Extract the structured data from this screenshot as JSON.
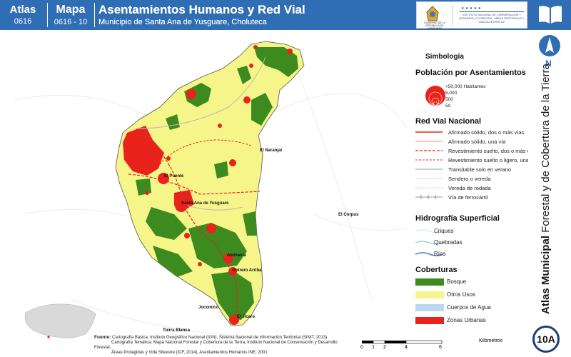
{
  "header": {
    "atlas_label": "Atlas",
    "atlas_code": "0616",
    "map_label": "Mapa",
    "map_code": "0616 - 10",
    "title": "Asentamientos Humanos y Red Vial",
    "subtitle": "Municipio de Santa Ana de Yusguare, Choluteca"
  },
  "logos": {
    "left_text": "GOBIERNO DE LA REPÚBLICA DE HONDURAS",
    "right_text": "INSTITUTO NACIONAL DE CONSERVACIÓN Y DESARROLLO FORESTAL, ÁREAS PROTEGIDAS Y VIDA SILVESTRE ICF"
  },
  "sidebar": {
    "north": "N",
    "vertical_bold": "Atlas Municipal",
    "vertical_rest": "Forestal y de Cobertura de la Tierra",
    "badge": "10A"
  },
  "legend": {
    "title": "Simbología",
    "poblacion": {
      "heading": "Población por Asentamientos",
      "sizes": [
        "+50,000 Habitantes",
        "5,000",
        "500",
        "50"
      ]
    },
    "red_vial": {
      "heading": "Red Vial Nacional",
      "items": [
        "Afirmado sólido, dos o más vías",
        "Afirmado sólido, una vía",
        "Revestimiento suelto, dos o más vías",
        "Revestimiento suelto o ligero, una vía",
        "Transitable solo en verano",
        "Sendero o vereda",
        "Vereda de rodada",
        "Vía de ferrocarril"
      ]
    },
    "hidrografia": {
      "heading": "Hidrografía Superficial",
      "items": [
        "Criques",
        "Quebradas",
        "Ríos"
      ]
    },
    "coberturas": {
      "heading": "Coberturas",
      "items": [
        {
          "label": "Bosque",
          "color": "#3d8b1f"
        },
        {
          "label": "Otros Usos",
          "color": "#f6f58a"
        },
        {
          "label": "Cuerpos de Agua",
          "color": "#bdd7ee"
        },
        {
          "label": "Zonas Urbanas",
          "color": "#e8231c"
        }
      ]
    }
  },
  "map_labels": {
    "el_naranjal": "El Naranjal",
    "el_puente": "El Puente",
    "santa_ana": "Santa Ana de Yusguare",
    "el_corpus": "El Corpus",
    "alemania": "Alemania",
    "potrero_arriba": "Potrero Arriba",
    "jocomico": "Jocomico",
    "el_jicaro": "El Jícaro",
    "tierra_blanca": "Tierra Blanca"
  },
  "source": {
    "label": "Fuente:",
    "line1": "Cartografía Básica: Instituto Geográfico Nacional (IGN), Sistema Nacional de Información Territorial (SINIT, 2013)",
    "line2": "Cartografía Temática: Mapa Nacional Forestal y Cobertura de la Tierra, Instituto Nacional de Conservación y Desarrollo Forestal,",
    "line3": "Áreas Protegidas y Vida Silvestre (ICF, 2014), Asentamientos Humanos INE, 2001"
  },
  "scale": {
    "ticks": [
      "0",
      "1",
      "2",
      "4",
      "6"
    ],
    "unit": "Kilómetros"
  }
}
